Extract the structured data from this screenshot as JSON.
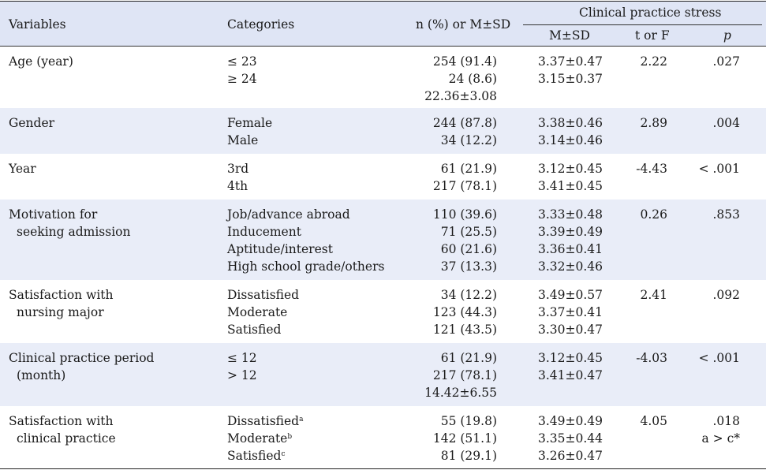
{
  "header": {
    "variables": "Variables",
    "categories": "Categories",
    "n_col": "n (%) or M±SD",
    "group": "Clinical practice stress",
    "msd": "M±SD",
    "t_or_f": "t or F",
    "p": "p"
  },
  "rows": [
    {
      "variable": [
        "Age (year)"
      ],
      "categories": [
        "≤ 23",
        "≥ 24",
        ""
      ],
      "n": [
        "254 (91.4)",
        "24 (8.6)",
        "22.36±3.08"
      ],
      "msd": [
        "3.37±0.47",
        "3.15±0.37"
      ],
      "t": [
        "2.22"
      ],
      "p": [
        ".027"
      ]
    },
    {
      "variable": [
        "Gender"
      ],
      "categories": [
        "Female",
        "Male"
      ],
      "n": [
        "244 (87.8)",
        "34 (12.2)"
      ],
      "msd": [
        "3.38±0.46",
        "3.14±0.46"
      ],
      "t": [
        "2.89"
      ],
      "p": [
        ".004"
      ]
    },
    {
      "variable": [
        "Year"
      ],
      "categories": [
        "3rd",
        "4th"
      ],
      "n": [
        "61 (21.9)",
        "217 (78.1)"
      ],
      "msd": [
        "3.12±0.45",
        "3.41±0.45"
      ],
      "t": [
        "-4.43"
      ],
      "p": [
        "< .001"
      ]
    },
    {
      "variable": [
        "Motivation for",
        "seeking admission"
      ],
      "categories": [
        "Job/advance abroad",
        "Inducement",
        "Aptitude/interest",
        "High school grade/others"
      ],
      "n": [
        "110 (39.6)",
        "71 (25.5)",
        "60 (21.6)",
        "37 (13.3)"
      ],
      "msd": [
        "3.33±0.48",
        "3.39±0.49",
        "3.36±0.41",
        "3.32±0.46"
      ],
      "t": [
        "0.26"
      ],
      "p": [
        ".853"
      ]
    },
    {
      "variable": [
        "Satisfaction with",
        "nursing major"
      ],
      "categories": [
        "Dissatisfied",
        "Moderate",
        "Satisfied"
      ],
      "n": [
        "34 (12.2)",
        "123 (44.3)",
        "121 (43.5)"
      ],
      "msd": [
        "3.49±0.57",
        "3.37±0.41",
        "3.30±0.47"
      ],
      "t": [
        "2.41"
      ],
      "p": [
        ".092"
      ]
    },
    {
      "variable": [
        "Clinical practice period",
        "(month)"
      ],
      "categories": [
        "≤ 12",
        "> 12",
        ""
      ],
      "n": [
        "61 (21.9)",
        "217 (78.1)",
        "14.42±6.55"
      ],
      "msd": [
        "3.12±0.45",
        "3.41±0.47"
      ],
      "t": [
        "-4.03"
      ],
      "p": [
        "< .001"
      ]
    },
    {
      "variable": [
        "Satisfaction with",
        "clinical practice"
      ],
      "categories": [
        "Dissatisfied",
        "Moderate",
        "Satisfied"
      ],
      "category_sups": [
        "a",
        "b",
        "c"
      ],
      "n": [
        "55 (19.8)",
        "142 (51.1)",
        "81 (29.1)"
      ],
      "msd": [
        "3.49±0.49",
        "3.35±0.44",
        "3.26±0.47"
      ],
      "t": [
        "4.05"
      ],
      "p": [
        ".018",
        "a > c*"
      ]
    }
  ]
}
